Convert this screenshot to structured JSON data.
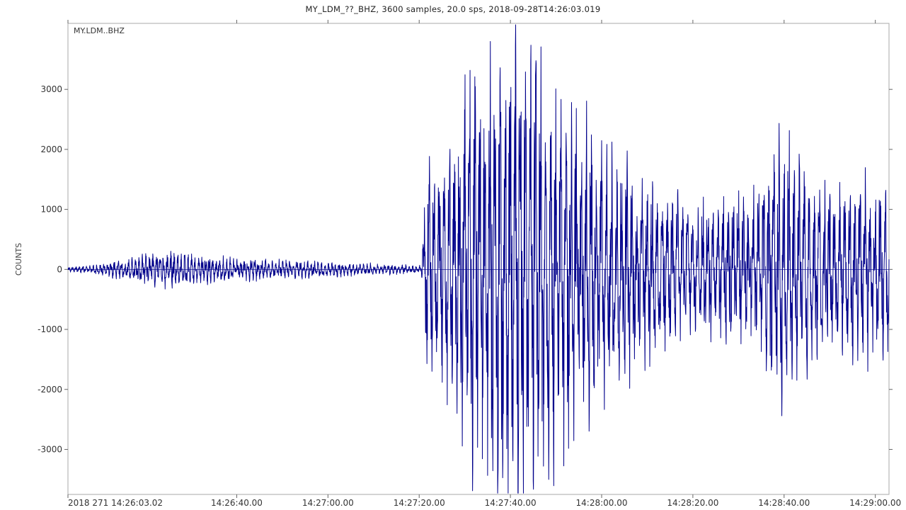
{
  "chart_data": {
    "type": "line",
    "title": "MY_LDM_??_BHZ, 3600 samples, 20.0 sps, 2018-09-28T14:26:03.019",
    "trace_label": "MY.LDM..BHZ",
    "xlabel": "",
    "ylabel": "COUNTS",
    "ylim": [
      -3750,
      4100
    ],
    "yticks": [
      -3000,
      -2000,
      -1000,
      0,
      1000,
      2000,
      3000
    ],
    "ytick_labels": [
      "-3000",
      "-2000",
      "-1000",
      "0",
      "1000",
      "2000",
      "3000"
    ],
    "x_unit": "seconds since 14:26:03.02",
    "xlim": [
      0,
      180
    ],
    "xticks": [
      0,
      37,
      57,
      77,
      97,
      117,
      137,
      157,
      177
    ],
    "xtick_labels": [
      "2018 271 14:26:03.02",
      "14:26:40.00",
      "14:27:00.00",
      "14:27:20.00",
      "14:27:40.00",
      "14:28:00.00",
      "14:28:20.00",
      "14:28:40.00",
      "14:29:00.00"
    ],
    "grid": false,
    "series": [
      {
        "name": "MY.LDM..BHZ",
        "color": "#00008b",
        "envelope": [
          {
            "t": 0,
            "amp": 40
          },
          {
            "t": 5,
            "amp": 60
          },
          {
            "t": 10,
            "amp": 150
          },
          {
            "t": 22,
            "amp": 300
          },
          {
            "t": 30,
            "amp": 220
          },
          {
            "t": 40,
            "amp": 170
          },
          {
            "t": 55,
            "amp": 130
          },
          {
            "t": 70,
            "amp": 80
          },
          {
            "t": 77.5,
            "amp": 60
          },
          {
            "t": 78.5,
            "amp": 1600
          },
          {
            "t": 83,
            "amp": 1900
          },
          {
            "t": 88,
            "amp": 3100
          },
          {
            "t": 95,
            "amp": 3900
          },
          {
            "t": 106,
            "amp": 3300
          },
          {
            "t": 115,
            "amp": 2300
          },
          {
            "t": 125,
            "amp": 1600
          },
          {
            "t": 135,
            "amp": 1100
          },
          {
            "t": 150,
            "amp": 1200
          },
          {
            "t": 157,
            "amp": 2300
          },
          {
            "t": 165,
            "amp": 1300
          },
          {
            "t": 175,
            "amp": 1500
          },
          {
            "t": 180,
            "amp": 1400
          }
        ]
      }
    ]
  }
}
